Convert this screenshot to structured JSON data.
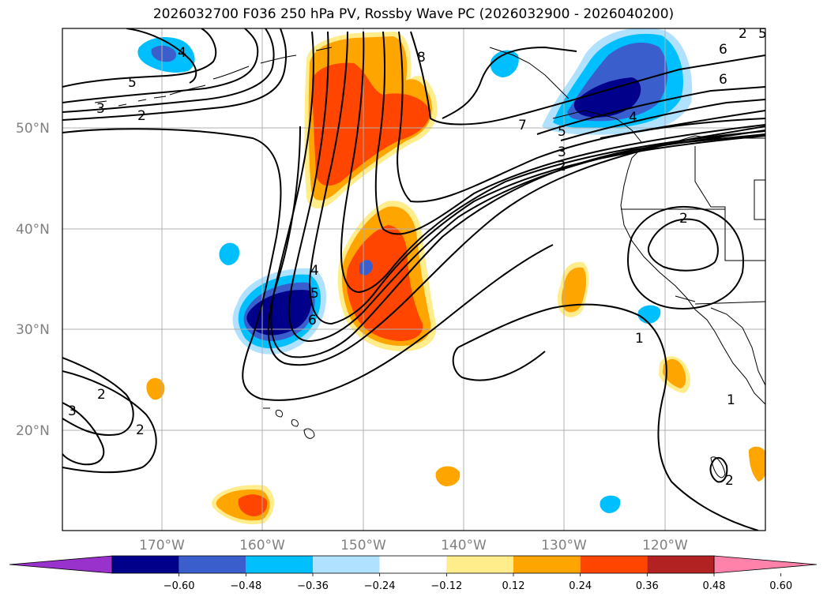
{
  "title": "2026032700 F036 250 hPa PV, Rossby Wave PC (2026032900 - 2026040200)",
  "lat_labels": [
    "50°N",
    "40°N",
    "30°N",
    "20°N"
  ],
  "lon_labels": [
    "170°W",
    "160°W",
    "150°W",
    "140°W",
    "130°W",
    "120°W"
  ],
  "colorbar": {
    "ticks": [
      "−0.60",
      "−0.48",
      "−0.36",
      "−0.24",
      "−0.12",
      "0.12",
      "0.24",
      "0.36",
      "0.48",
      "0.60"
    ],
    "colors": [
      "#9932cc",
      "#00008b",
      "#3a5fcd",
      "#00bfff",
      "#b0e2ff",
      "#ffffff",
      "#ffec8b",
      "#ffa500",
      "#ff4500",
      "#b22222",
      "#ff82ab"
    ]
  },
  "pv_contour_labels": [
    "4",
    "5",
    "3",
    "2",
    "8",
    "7",
    "6",
    "6",
    "5",
    "4",
    "3",
    "2",
    "4",
    "5",
    "6",
    "2",
    "1",
    "2",
    "3",
    "2",
    "1",
    "2",
    "2",
    "5"
  ]
}
